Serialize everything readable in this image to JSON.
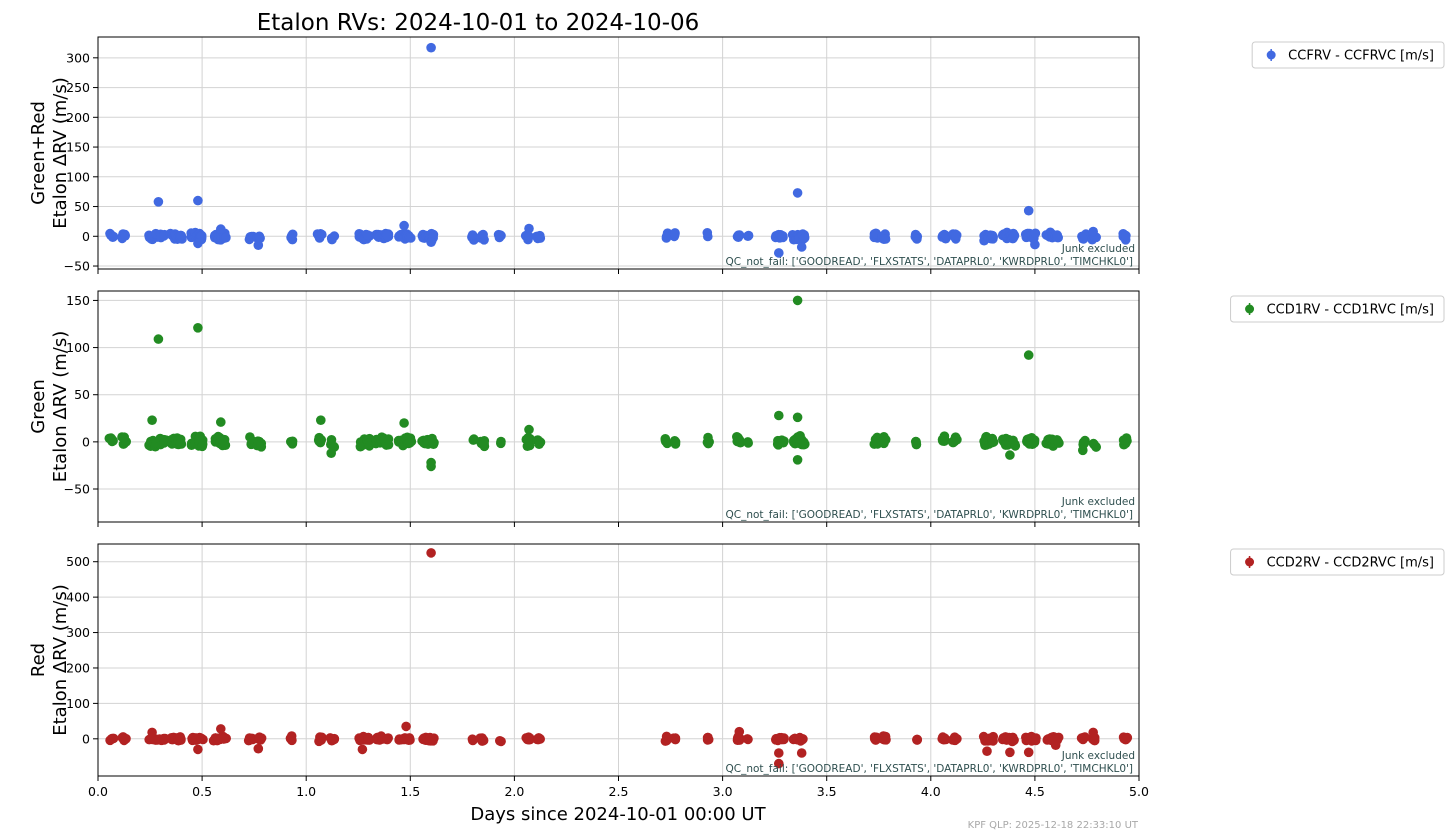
{
  "chart_data": {
    "type": "scatter",
    "title": "Etalon RVs: 2024-10-01 to 2024-10-06",
    "xlabel": "Days since 2024-10-01 00:00 UT",
    "xlim": [
      0.0,
      5.0
    ],
    "xticks": [
      "0.0",
      "0.5",
      "1.0",
      "1.5",
      "2.0",
      "2.5",
      "3.0",
      "3.5",
      "4.0",
      "4.5",
      "5.0"
    ],
    "grid": true,
    "legend_placement": "outside-right",
    "footer": "KPF QLP: 2025-12-18 22:33:10 UT",
    "panels": [
      {
        "ylabel_top": "Green+Red",
        "ylabel": "Etalon ΔRV (m/s)",
        "ylim": [
          -55,
          335
        ],
        "yticks": [
          -50,
          0,
          50,
          100,
          150,
          200,
          250,
          300
        ],
        "color": "#4169e1",
        "legend": "CCFRV - CCFRVC [m/s]",
        "note1": "Junk excluded",
        "note2": "QC_not_fail: ['GOODREAD', 'FLXSTATS', 'DATAPRL0', 'KWRDPRL0', 'TIMCHKL0']",
        "outliers": [
          [
            0.29,
            58
          ],
          [
            0.48,
            60
          ],
          [
            1.6,
            317
          ],
          [
            3.36,
            73
          ],
          [
            4.47,
            43
          ],
          [
            3.27,
            -28
          ],
          [
            1.6,
            -10
          ],
          [
            0.48,
            -12
          ],
          [
            0.77,
            -15
          ],
          [
            3.38,
            -18
          ],
          [
            4.5,
            -14
          ],
          [
            4.73,
            -4
          ],
          [
            4.78,
            8
          ],
          [
            1.47,
            18
          ],
          [
            2.07,
            13
          ],
          [
            0.59,
            12
          ]
        ],
        "noise": 5.5
      },
      {
        "ylabel_top": "Green",
        "ylabel": "Etalon ΔRV (m/s)",
        "ylim": [
          -85,
          160
        ],
        "yticks": [
          -50,
          0,
          50,
          100,
          150
        ],
        "color": "#228b22",
        "legend": "CCD1RV - CCD1RVC [m/s]",
        "note1": "Junk excluded",
        "note2": "QC_not_fail: ['GOODREAD', 'FLXSTATS', 'DATAPRL0', 'KWRDPRL0', 'TIMCHKL0']",
        "outliers": [
          [
            0.29,
            109
          ],
          [
            0.48,
            121
          ],
          [
            3.36,
            150
          ],
          [
            4.47,
            92
          ],
          [
            0.26,
            23
          ],
          [
            1.07,
            23
          ],
          [
            1.47,
            20
          ],
          [
            0.59,
            21
          ],
          [
            3.27,
            28
          ],
          [
            3.36,
            26
          ],
          [
            1.6,
            -22
          ],
          [
            1.6,
            -26
          ],
          [
            3.36,
            -19
          ],
          [
            1.12,
            -12
          ],
          [
            4.38,
            -14
          ],
          [
            4.73,
            -9
          ],
          [
            2.07,
            13
          ]
        ],
        "noise": 5.0
      },
      {
        "ylabel_top": "Red",
        "ylabel": "Etalon ΔRV (m/s)",
        "ylim": [
          -105,
          550
        ],
        "yticks": [
          0,
          100,
          200,
          300,
          400,
          500
        ],
        "color": "#b22222",
        "legend": "CCD2RV - CCD2RVC [m/s]",
        "note1": "Junk excluded",
        "note2": "QC_not_fail: ['GOODREAD', 'FLXSTATS', 'DATAPRL0', 'KWRDPRL0', 'TIMCHKL0']",
        "outliers": [
          [
            1.6,
            525
          ],
          [
            1.48,
            35
          ],
          [
            0.59,
            28
          ],
          [
            0.26,
            18
          ],
          [
            3.08,
            20
          ],
          [
            4.78,
            18
          ],
          [
            3.27,
            -70
          ],
          [
            3.27,
            -40
          ],
          [
            3.38,
            -40
          ],
          [
            4.47,
            -38
          ],
          [
            0.48,
            -30
          ],
          [
            0.77,
            -28
          ],
          [
            1.27,
            -30
          ],
          [
            4.27,
            -35
          ],
          [
            4.38,
            -38
          ],
          [
            4.6,
            -18
          ]
        ],
        "noise": 6.0
      }
    ],
    "x_clusters": [
      0.06,
      0.07,
      0.12,
      0.13,
      0.25,
      0.26,
      0.27,
      0.28,
      0.3,
      0.32,
      0.35,
      0.36,
      0.37,
      0.38,
      0.39,
      0.4,
      0.45,
      0.47,
      0.48,
      0.49,
      0.5,
      0.56,
      0.57,
      0.58,
      0.59,
      0.6,
      0.61,
      0.73,
      0.74,
      0.77,
      0.78,
      0.93,
      1.06,
      1.07,
      1.12,
      1.13,
      1.26,
      1.27,
      1.28,
      1.29,
      1.3,
      1.34,
      1.35,
      1.36,
      1.37,
      1.38,
      1.39,
      1.45,
      1.46,
      1.47,
      1.48,
      1.49,
      1.5,
      1.56,
      1.57,
      1.58,
      1.59,
      1.6,
      1.61,
      1.8,
      1.84,
      1.85,
      1.93,
      2.06,
      2.07,
      2.11,
      2.12,
      2.73,
      2.77,
      2.93,
      3.07,
      3.08,
      3.12,
      3.26,
      3.27,
      3.28,
      3.29,
      3.34,
      3.35,
      3.36,
      3.37,
      3.38,
      3.39,
      3.73,
      3.74,
      3.77,
      3.78,
      3.93,
      4.06,
      4.07,
      4.11,
      4.12,
      4.26,
      4.27,
      4.28,
      4.29,
      4.3,
      4.35,
      4.36,
      4.37,
      4.38,
      4.39,
      4.4,
      4.46,
      4.47,
      4.48,
      4.49,
      4.5,
      4.56,
      4.57,
      4.58,
      4.59,
      4.6,
      4.61,
      4.73,
      4.74,
      4.78,
      4.79,
      4.93,
      4.94
    ]
  }
}
